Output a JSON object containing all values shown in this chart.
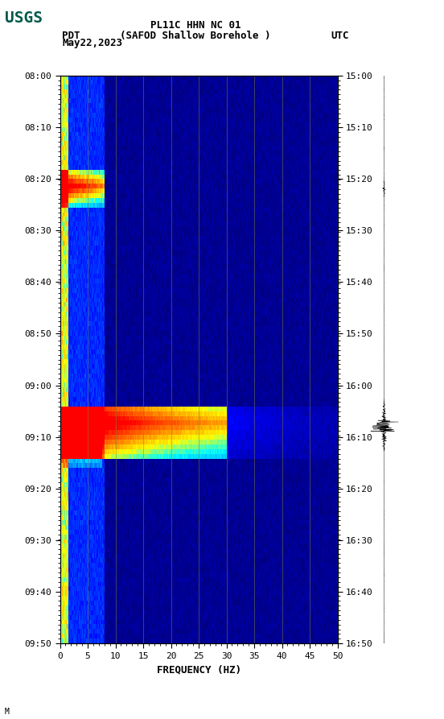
{
  "title_line1": "PL11C HHN NC 01",
  "title_line2": "(SAFOD Shallow Borehole )",
  "left_time_label": "PDT",
  "right_time_label": "UTC",
  "date_label": "May22,2023",
  "left_yticks": [
    "08:00",
    "08:10",
    "08:20",
    "08:30",
    "08:40",
    "08:50",
    "09:00",
    "09:10",
    "09:20",
    "09:30",
    "09:40",
    "09:50"
  ],
  "right_yticks": [
    "15:00",
    "15:10",
    "15:20",
    "15:30",
    "15:40",
    "15:50",
    "16:00",
    "16:10",
    "16:20",
    "16:30",
    "16:40",
    "16:50"
  ],
  "xticks": [
    0,
    5,
    10,
    15,
    20,
    25,
    30,
    35,
    40,
    45,
    50
  ],
  "xlabel": "FREQUENCY (HZ)",
  "freq_min": 0,
  "freq_max": 50,
  "time_steps": 120,
  "freq_steps": 500,
  "background_color": "#ffffff",
  "plot_bg_color": "#000080",
  "seismogram_color": "#000000",
  "usgs_green": "#00594a",
  "grid_color": "#808040",
  "grid_linewidth": 0.5,
  "grid_alpha": 0.7,
  "event1_time": 23,
  "event1_freq_max": 8,
  "event1_intensity": 0.95,
  "event2_time": 73,
  "event2_freq_max": 50,
  "event2_intensity": 1.0,
  "low_freq_band_intensity": 0.7
}
